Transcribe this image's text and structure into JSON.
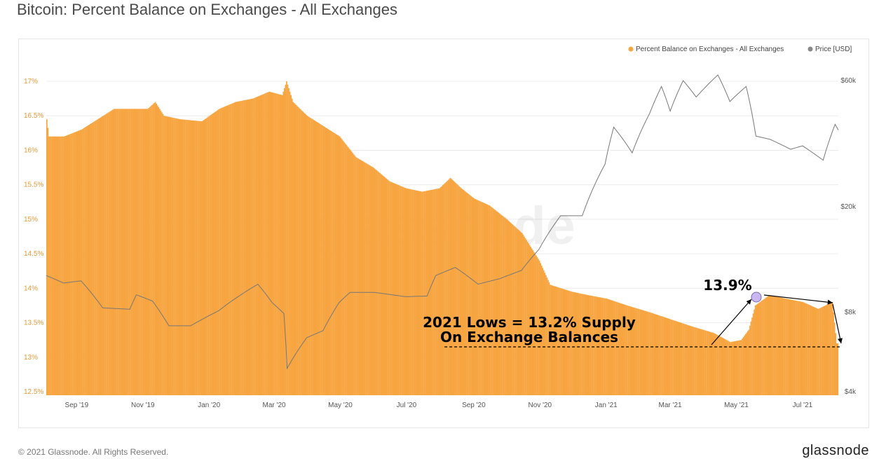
{
  "title": "Bitcoin: Percent Balance on Exchanges - All Exchanges",
  "footer": {
    "copyright": "© 2021 Glassnode. All Rights Reserved.",
    "logo": "glassnode"
  },
  "watermark": "glassnode",
  "colors": {
    "balance": "#f7a541",
    "price": "#888888",
    "grid": "#ececec",
    "axis_left": "#e09a3c",
    "text": "#555555"
  },
  "chart_data": {
    "type": "bar",
    "title": "Bitcoin: Percent Balance on Exchanges - All Exchanges",
    "x_range": [
      "2019-08-04",
      "2021-08-03"
    ],
    "x_ticks": [
      {
        "date": "2019-09-01",
        "label": "Sep '19"
      },
      {
        "date": "2019-11-01",
        "label": "Nov '19"
      },
      {
        "date": "2020-01-01",
        "label": "Jan '20"
      },
      {
        "date": "2020-03-01",
        "label": "Mar '20"
      },
      {
        "date": "2020-05-01",
        "label": "May '20"
      },
      {
        "date": "2020-07-01",
        "label": "Jul '20"
      },
      {
        "date": "2020-09-01",
        "label": "Sep '20"
      },
      {
        "date": "2020-11-01",
        "label": "Nov '20"
      },
      {
        "date": "2021-01-01",
        "label": "Jan '21"
      },
      {
        "date": "2021-03-01",
        "label": "Mar '21"
      },
      {
        "date": "2021-05-01",
        "label": "May '21"
      },
      {
        "date": "2021-07-01",
        "label": "Jul '21"
      }
    ],
    "y_left": {
      "range": [
        12.5,
        17
      ],
      "ticks": [
        {
          "v": 17,
          "label": "17%"
        },
        {
          "v": 16.5,
          "label": "16.5%"
        },
        {
          "v": 16,
          "label": "16%"
        },
        {
          "v": 15.5,
          "label": "15.5%"
        },
        {
          "v": 15,
          "label": "15%"
        },
        {
          "v": 14.5,
          "label": "14.5%"
        },
        {
          "v": 14,
          "label": "14%"
        },
        {
          "v": 13.5,
          "label": "13.5%"
        },
        {
          "v": 13,
          "label": "13%"
        },
        {
          "v": 12.5,
          "label": "12.5%"
        }
      ]
    },
    "y_right": {
      "scale": "log",
      "range": [
        4000,
        60000
      ],
      "ticks": [
        {
          "v": 60000,
          "label": "$60k"
        },
        {
          "v": 20000,
          "label": "$20k"
        },
        {
          "v": 8000,
          "label": "$8k"
        },
        {
          "v": 4000,
          "label": "$4k"
        }
      ]
    },
    "legend": {
      "placement": "top-right",
      "entries": [
        {
          "name": "Percent Balance on Exchanges - All Exchanges",
          "color": "#f7a541"
        },
        {
          "name": "Price [USD]",
          "color": "#888888"
        }
      ]
    },
    "series": [
      {
        "name": "Percent Balance on Exchanges - All Exchanges",
        "kind": "bar",
        "points": [
          [
            "2019-08-04",
            16.45
          ],
          [
            "2019-08-06",
            16.2
          ],
          [
            "2019-08-20",
            16.2
          ],
          [
            "2019-09-05",
            16.3
          ],
          [
            "2019-09-20",
            16.45
          ],
          [
            "2019-10-05",
            16.6
          ],
          [
            "2019-10-25",
            16.6
          ],
          [
            "2019-11-05",
            16.6
          ],
          [
            "2019-11-12",
            16.7
          ],
          [
            "2019-11-20",
            16.5
          ],
          [
            "2019-12-05",
            16.45
          ],
          [
            "2019-12-25",
            16.42
          ],
          [
            "2020-01-10",
            16.6
          ],
          [
            "2020-01-25",
            16.7
          ],
          [
            "2020-02-10",
            16.75
          ],
          [
            "2020-02-25",
            16.85
          ],
          [
            "2020-03-08",
            16.8
          ],
          [
            "2020-03-12",
            17.0
          ],
          [
            "2020-03-18",
            16.7
          ],
          [
            "2020-03-31",
            16.5
          ],
          [
            "2020-04-15",
            16.35
          ],
          [
            "2020-04-30",
            16.2
          ],
          [
            "2020-05-15",
            15.9
          ],
          [
            "2020-05-31",
            15.75
          ],
          [
            "2020-06-15",
            15.55
          ],
          [
            "2020-06-30",
            15.45
          ],
          [
            "2020-07-15",
            15.4
          ],
          [
            "2020-07-31",
            15.45
          ],
          [
            "2020-08-10",
            15.6
          ],
          [
            "2020-08-20",
            15.45
          ],
          [
            "2020-09-01",
            15.3
          ],
          [
            "2020-09-15",
            15.2
          ],
          [
            "2020-10-01",
            15.0
          ],
          [
            "2020-10-15",
            14.8
          ],
          [
            "2020-10-31",
            14.4
          ],
          [
            "2020-11-10",
            14.05
          ],
          [
            "2020-11-30",
            13.95
          ],
          [
            "2020-12-15",
            13.9
          ],
          [
            "2021-01-01",
            13.85
          ],
          [
            "2021-01-20",
            13.75
          ],
          [
            "2021-02-10",
            13.65
          ],
          [
            "2021-03-01",
            13.55
          ],
          [
            "2021-03-20",
            13.45
          ],
          [
            "2021-04-10",
            13.35
          ],
          [
            "2021-04-25",
            13.22
          ],
          [
            "2021-05-05",
            13.25
          ],
          [
            "2021-05-12",
            13.4
          ],
          [
            "2021-05-18",
            13.75
          ],
          [
            "2021-05-31",
            13.9
          ],
          [
            "2021-06-15",
            13.85
          ],
          [
            "2021-07-01",
            13.8
          ],
          [
            "2021-07-15",
            13.7
          ],
          [
            "2021-07-28",
            13.8
          ],
          [
            "2021-08-01",
            13.2
          ],
          [
            "2021-08-03",
            13.2
          ]
        ]
      },
      {
        "name": "Price [USD]",
        "kind": "line",
        "points": [
          [
            "2019-08-04",
            11000
          ],
          [
            "2019-08-20",
            10300
          ],
          [
            "2019-09-05",
            10500
          ],
          [
            "2019-09-25",
            8300
          ],
          [
            "2019-10-20",
            8200
          ],
          [
            "2019-10-26",
            9300
          ],
          [
            "2019-11-10",
            8800
          ],
          [
            "2019-11-25",
            7100
          ],
          [
            "2019-12-15",
            7100
          ],
          [
            "2020-01-10",
            8100
          ],
          [
            "2020-01-20",
            8700
          ],
          [
            "2020-02-15",
            10200
          ],
          [
            "2020-02-28",
            8700
          ],
          [
            "2020-03-10",
            7900
          ],
          [
            "2020-03-13",
            4900
          ],
          [
            "2020-03-31",
            6400
          ],
          [
            "2020-04-15",
            6800
          ],
          [
            "2020-04-30",
            8700
          ],
          [
            "2020-05-10",
            9500
          ],
          [
            "2020-06-01",
            9500
          ],
          [
            "2020-06-30",
            9150
          ],
          [
            "2020-07-20",
            9200
          ],
          [
            "2020-07-28",
            11000
          ],
          [
            "2020-08-15",
            11800
          ],
          [
            "2020-09-05",
            10200
          ],
          [
            "2020-09-25",
            10700
          ],
          [
            "2020-10-15",
            11500
          ],
          [
            "2020-10-31",
            13800
          ],
          [
            "2020-11-20",
            18500
          ],
          [
            "2020-12-10",
            18500
          ],
          [
            "2020-12-31",
            29000
          ],
          [
            "2021-01-08",
            40000
          ],
          [
            "2021-01-25",
            32000
          ],
          [
            "2021-02-10",
            45000
          ],
          [
            "2021-02-21",
            57000
          ],
          [
            "2021-03-01",
            46000
          ],
          [
            "2021-03-13",
            60000
          ],
          [
            "2021-03-25",
            52000
          ],
          [
            "2021-04-14",
            63000
          ],
          [
            "2021-04-25",
            50000
          ],
          [
            "2021-05-10",
            57000
          ],
          [
            "2021-05-19",
            37000
          ],
          [
            "2021-06-01",
            36000
          ],
          [
            "2021-06-20",
            33000
          ],
          [
            "2021-07-01",
            34000
          ],
          [
            "2021-07-20",
            30000
          ],
          [
            "2021-07-31",
            41000
          ],
          [
            "2021-08-03",
            39000
          ]
        ]
      }
    ],
    "annotations": [
      {
        "text": "13.9%",
        "date": "2021-05-26",
        "value": 13.9
      },
      {
        "text": "2021 Lows = 13.2% Supply",
        "date": "2020-12-01",
        "value": 13.2
      },
      {
        "text": "On Exchange Balances",
        "date": "2020-12-01",
        "value": 13.2
      },
      {
        "text": "",
        "type": "dashed-line",
        "value": 13.2,
        "from": "2020-08-05",
        "to": "2021-08-03"
      }
    ]
  }
}
